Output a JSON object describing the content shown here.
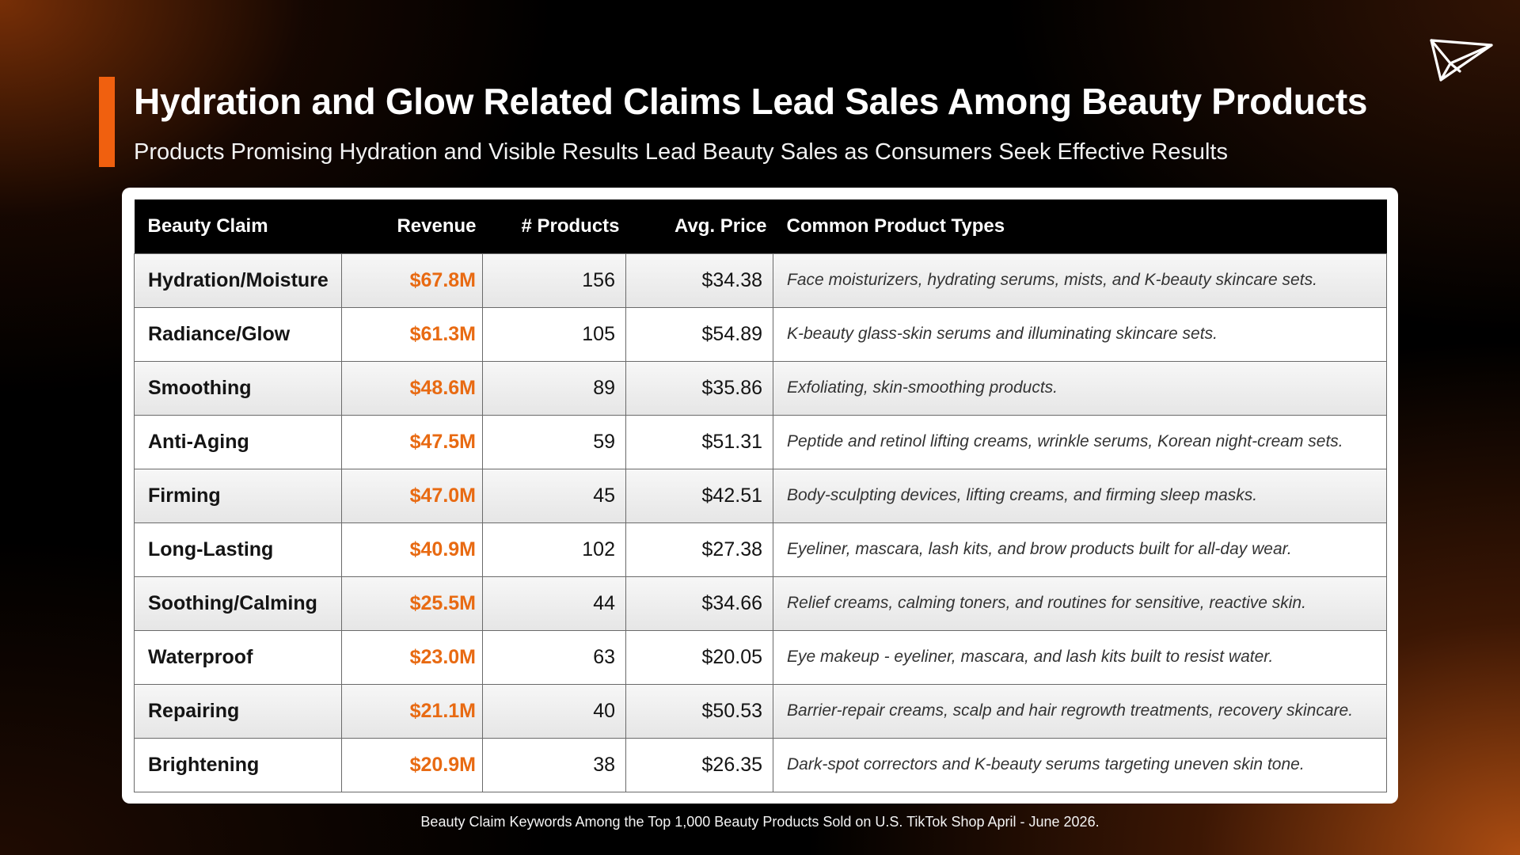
{
  "header": {
    "title": "Hydration and Glow Related Claims Lead Sales Among Beauty Products",
    "subtitle": "Products Promising Hydration and Visible Results Lead Beauty Sales as Consumers Seek Effective Results",
    "logo_icon": "paper-plane-icon"
  },
  "colors": {
    "accent": "#f0600f",
    "revenue_text": "#e86a12",
    "header_row": "#000000"
  },
  "chart_data": {
    "type": "table",
    "columns": [
      "Beauty Claim",
      "Revenue",
      "# Products",
      "Avg. Price",
      "Common Product Types"
    ],
    "rows": [
      [
        "Hydration/Moisture",
        "$67.8M",
        "156",
        "$34.38",
        "Face moisturizers, hydrating serums, mists, and K-beauty skincare sets."
      ],
      [
        "Radiance/Glow",
        "$61.3M",
        "105",
        "$54.89",
        "K-beauty glass-skin serums and illuminating skincare sets."
      ],
      [
        "Smoothing",
        "$48.6M",
        "89",
        "$35.86",
        "Exfoliating, skin-smoothing products."
      ],
      [
        "Anti-Aging",
        "$47.5M",
        "59",
        "$51.31",
        "Peptide and retinol lifting creams, wrinkle serums, Korean night-cream sets."
      ],
      [
        "Firming",
        "$47.0M",
        "45",
        "$42.51",
        "Body-sculpting devices, lifting creams, and firming sleep masks."
      ],
      [
        "Long-Lasting",
        "$40.9M",
        "102",
        "$27.38",
        "Eyeliner, mascara, lash kits, and brow products built for all-day wear."
      ],
      [
        "Soothing/Calming",
        "$25.5M",
        "44",
        "$34.66",
        "Relief creams, calming toners, and routines for sensitive, reactive skin."
      ],
      [
        "Waterproof",
        "$23.0M",
        "63",
        "$20.05",
        "Eye makeup - eyeliner, mascara, and lash kits built to resist water."
      ],
      [
        "Repairing",
        "$21.1M",
        "40",
        "$50.53",
        "Barrier-repair creams, scalp and hair regrowth treatments, recovery skincare."
      ],
      [
        "Brightening",
        "$20.9M",
        "38",
        "$26.35",
        "Dark-spot correctors and K-beauty serums targeting uneven skin tone."
      ]
    ]
  },
  "footnote": "Beauty Claim Keywords Among the Top 1,000 Beauty Products Sold on U.S. TikTok Shop April - June 2026."
}
